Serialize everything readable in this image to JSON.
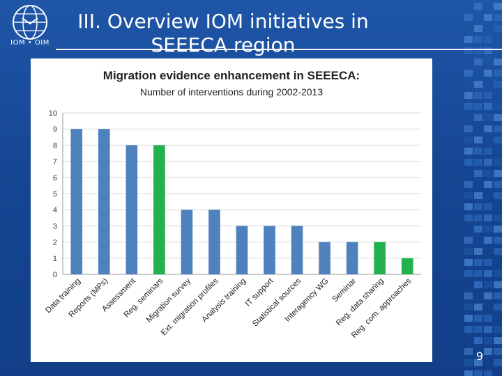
{
  "slide": {
    "title": "III. Overview IOM initiatives in SEEECA region",
    "logo_text": "IOM • OIM",
    "page_number": "9"
  },
  "colors": {
    "background": "#174a9a",
    "bar_blue": "#4f81bd",
    "bar_green": "#22b14c",
    "grid": "#d9d9d9"
  },
  "chart_data": {
    "type": "bar",
    "title": "Migration evidence enhancement in SEEECA:",
    "subtitle": "Number of interventions during 2002-2013",
    "categories": [
      "Data training",
      "Reports (MPs)",
      "Assessment",
      "Reg. seminars",
      "Migration survey",
      "Ext. migration profiles",
      "Analysis training",
      "IT support",
      "Statistical sources",
      "Interagency WG",
      "Seminar",
      "Reg. data sharing",
      "Reg. com. approaches"
    ],
    "values": [
      9,
      9,
      8,
      8,
      4,
      4,
      3,
      3,
      3,
      2,
      2,
      2,
      1
    ],
    "bar_colors": [
      "blue",
      "blue",
      "blue",
      "green",
      "blue",
      "blue",
      "blue",
      "blue",
      "blue",
      "blue",
      "blue",
      "green",
      "green"
    ],
    "ylim": [
      0,
      10
    ],
    "yticks": [
      "0",
      "1",
      "2",
      "3",
      "4",
      "5",
      "6",
      "7",
      "8",
      "9",
      "10"
    ],
    "grid": true,
    "legend": "none"
  }
}
